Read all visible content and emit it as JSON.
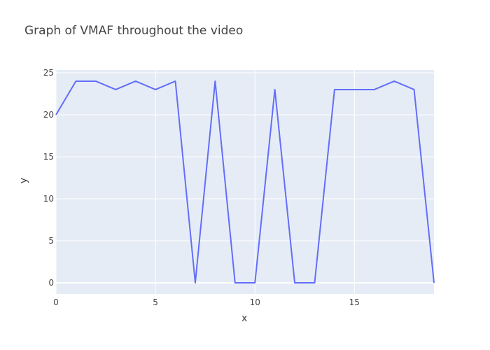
{
  "chart_data": {
    "type": "line",
    "title": "Graph of VMAF throughout the video",
    "xlabel": "x",
    "ylabel": "y",
    "x": [
      0,
      1,
      2,
      3,
      4,
      5,
      6,
      7,
      8,
      9,
      10,
      11,
      12,
      13,
      14,
      15,
      16,
      17,
      18,
      19
    ],
    "series": [
      {
        "values": [
          20,
          24,
          24,
          23,
          24,
          23,
          24,
          0,
          24,
          0,
          0,
          23,
          0,
          0,
          23,
          23,
          23,
          24,
          23,
          0
        ]
      }
    ],
    "xlim": [
      0,
      19
    ],
    "ylim": [
      -1.33,
      25.33
    ],
    "xticks": [
      0,
      5,
      10,
      15
    ],
    "yticks": [
      0,
      5,
      10,
      15,
      20,
      25
    ],
    "grid": true,
    "colors": {
      "line": "#636efa",
      "plot_background": "#e5ecf6",
      "grid": "#ffffff"
    }
  }
}
